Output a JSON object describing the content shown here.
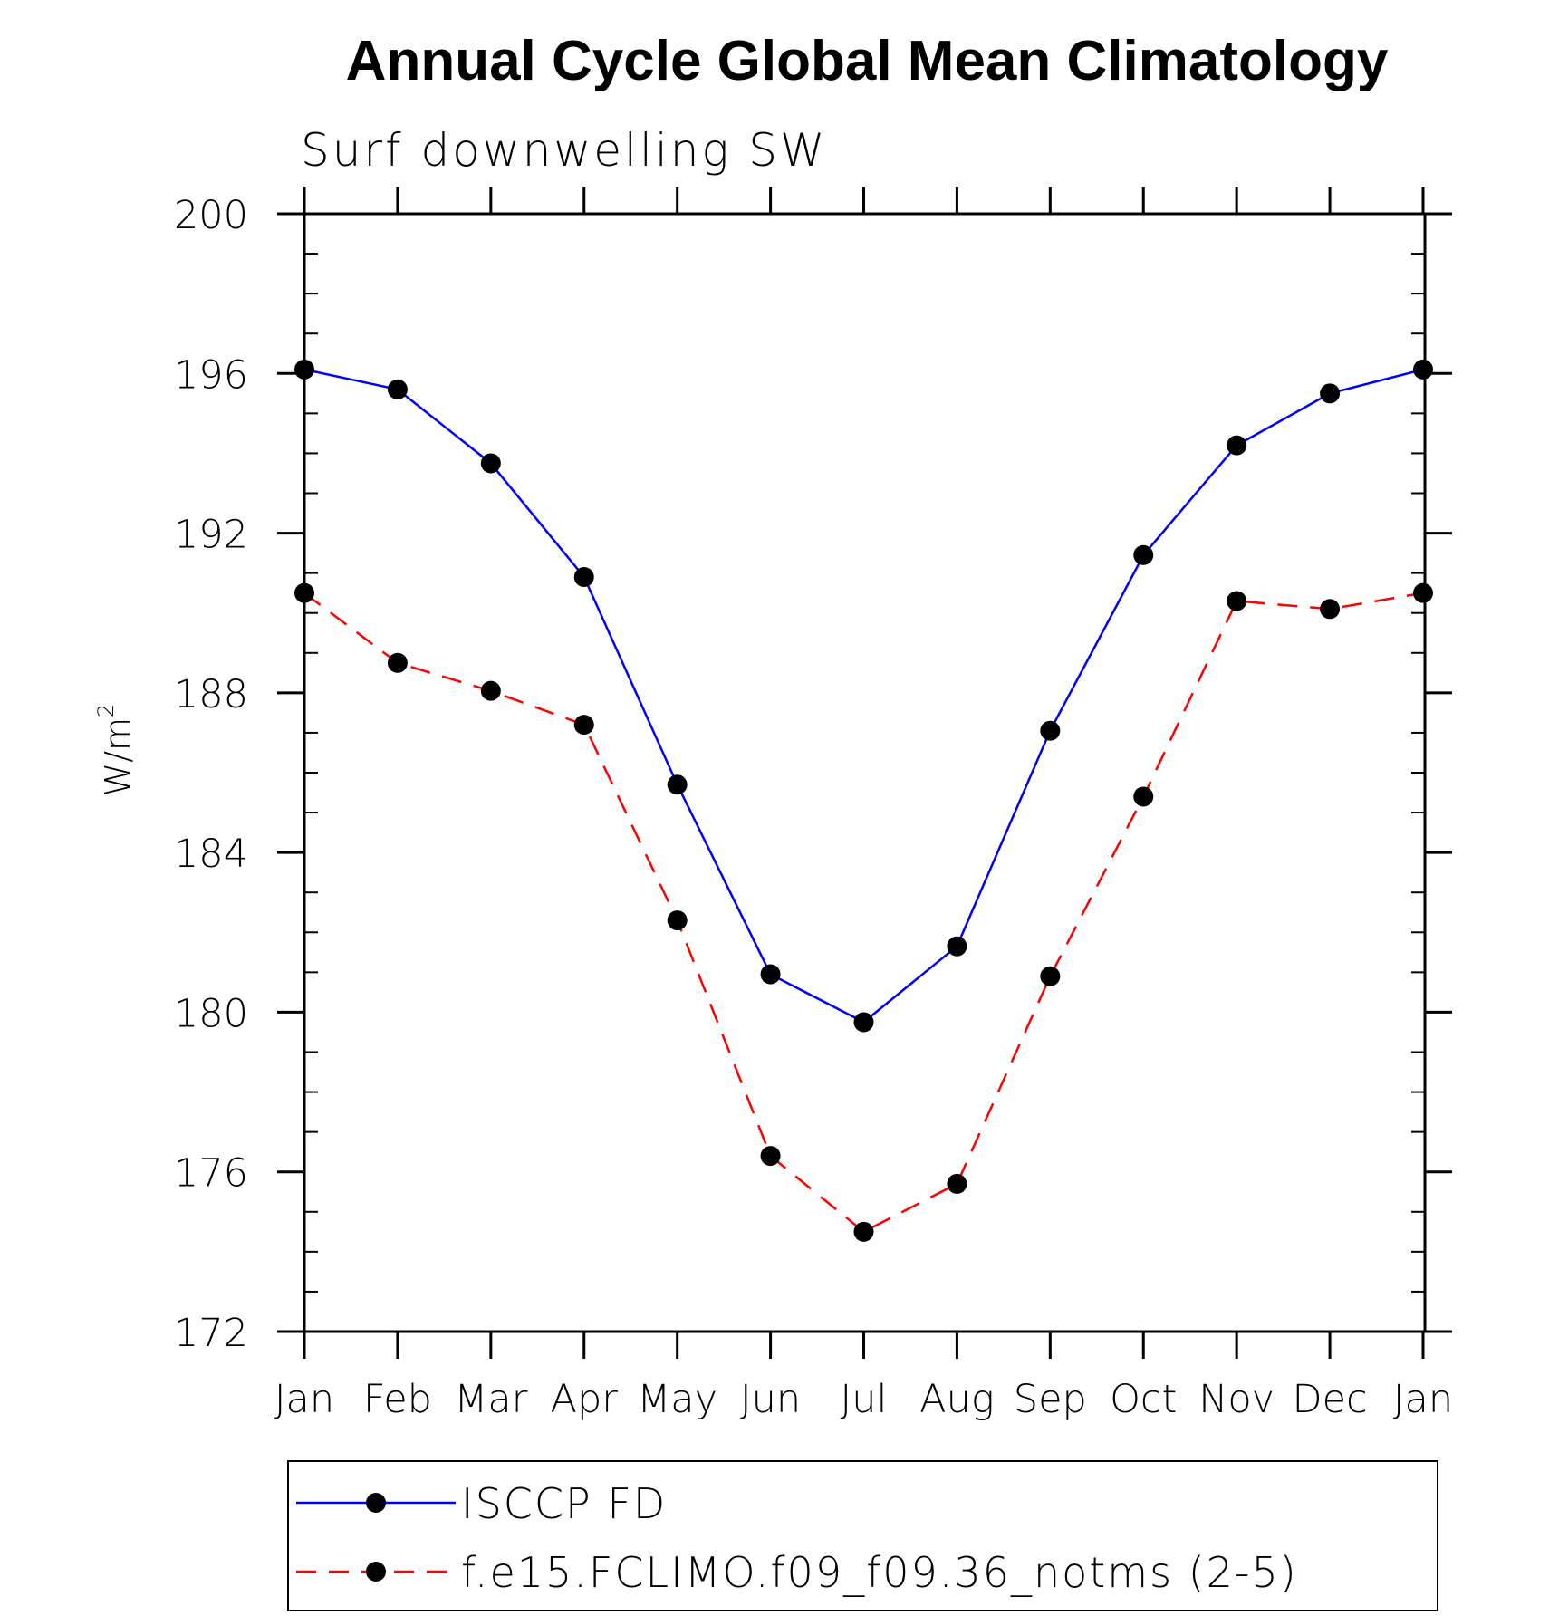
{
  "chart_data": {
    "type": "line",
    "title": "Annual Cycle Global Mean Climatology",
    "subtitle": "Surf downwelling SW",
    "xlabel": "",
    "ylabel": "W/m",
    "ylabel_superscript": "2",
    "categories": [
      "Jan",
      "Feb",
      "Mar",
      "Apr",
      "May",
      "Jun",
      "Jul",
      "Aug",
      "Sep",
      "Oct",
      "Nov",
      "Dec",
      "Jan"
    ],
    "ylim": [
      172,
      200
    ],
    "yticks": [
      172,
      176,
      180,
      184,
      188,
      192,
      196,
      200
    ],
    "ytick_labels": [
      "172",
      "176",
      "180",
      "184",
      "188",
      "192",
      "196",
      "200"
    ],
    "y_minor_step": 1,
    "grid": false,
    "legend_position": "bottom",
    "series": [
      {
        "name": "ISCCP FD",
        "color": "#0000ff",
        "line_style": "solid",
        "marker": "filled-circle",
        "marker_color": "#000000",
        "values": [
          196.1,
          195.6,
          193.75,
          190.9,
          185.7,
          180.95,
          179.75,
          181.65,
          187.05,
          191.45,
          194.2,
          195.5,
          196.1
        ]
      },
      {
        "name": "f.e15.FCLIMO.f09_f09.36_notms (2-5)",
        "color": "#ff0000",
        "line_style": "dashed",
        "marker": "filled-circle",
        "marker_color": "#000000",
        "values": [
          190.5,
          188.75,
          188.05,
          187.2,
          182.3,
          176.4,
          174.5,
          175.7,
          180.9,
          185.4,
          190.3,
          190.1,
          190.5
        ]
      }
    ]
  }
}
